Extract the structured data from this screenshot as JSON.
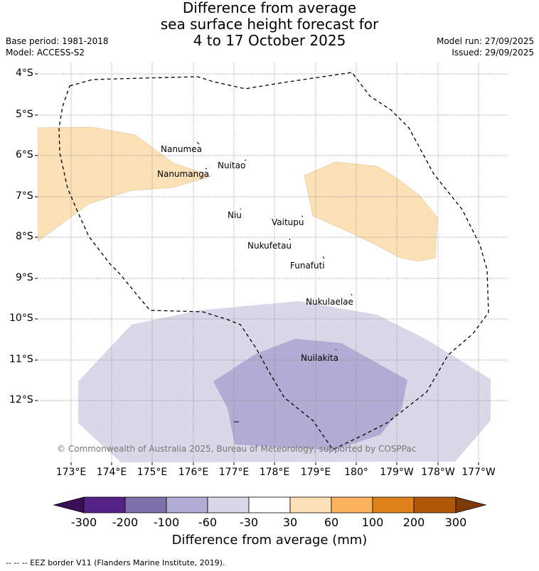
{
  "title": {
    "line1": "Difference from average",
    "line2": "sea surface height forecast for",
    "line3": "4 to 17 October 2025"
  },
  "meta": {
    "base_period": "Base period: 1981-2018",
    "model": "Model: ACCESS-S2",
    "model_run": "Model run: 27/09/2025",
    "issued": "Issued: 29/09/2025"
  },
  "axes": {
    "lat_labels": [
      "4°S",
      "5°S",
      "6°S",
      "7°S",
      "8°S",
      "9°S",
      "10°S",
      "11°S",
      "12°S"
    ],
    "lon_labels": [
      "173°E",
      "174°E",
      "175°E",
      "176°E",
      "177°E",
      "178°E",
      "179°E",
      "180°",
      "179°W",
      "178°W",
      "177°W"
    ]
  },
  "islands": [
    {
      "name": "Nanumea"
    },
    {
      "name": "Nuitao"
    },
    {
      "name": "Nanumanga"
    },
    {
      "name": "Niu"
    },
    {
      "name": "Vaitupu"
    },
    {
      "name": "Nukufetau"
    },
    {
      "name": "Funafuti"
    },
    {
      "name": "Nukulaelae"
    },
    {
      "name": "Nuilakita"
    }
  ],
  "copyright": "© Commonwealth of Australia 2025, Bureau of Meteorology, supported by COSPPac",
  "colorbar": {
    "title": "Difference from average (mm)",
    "labels": [
      "-300",
      "-200",
      "-100",
      "-60",
      "-30",
      "30",
      "60",
      "100",
      "200",
      "300"
    ],
    "colors": {
      "lt_m300": "#3b0f57",
      "m300_m200": "#542388",
      "m200_m100": "#7f70ac",
      "m100_m60": "#b1acd3",
      "m60_m30": "#d8d8e8",
      "m30_30": "#ffffff",
      "p30_60": "#fce1b7",
      "p60_100": "#fbb35e",
      "p100_200": "#e0821a",
      "p200_300": "#b15708",
      "gt_300": "#7e3b08"
    }
  },
  "footer": "--  --  -- EEZ border V11 (Flanders Marine Institute, 2019)."
}
